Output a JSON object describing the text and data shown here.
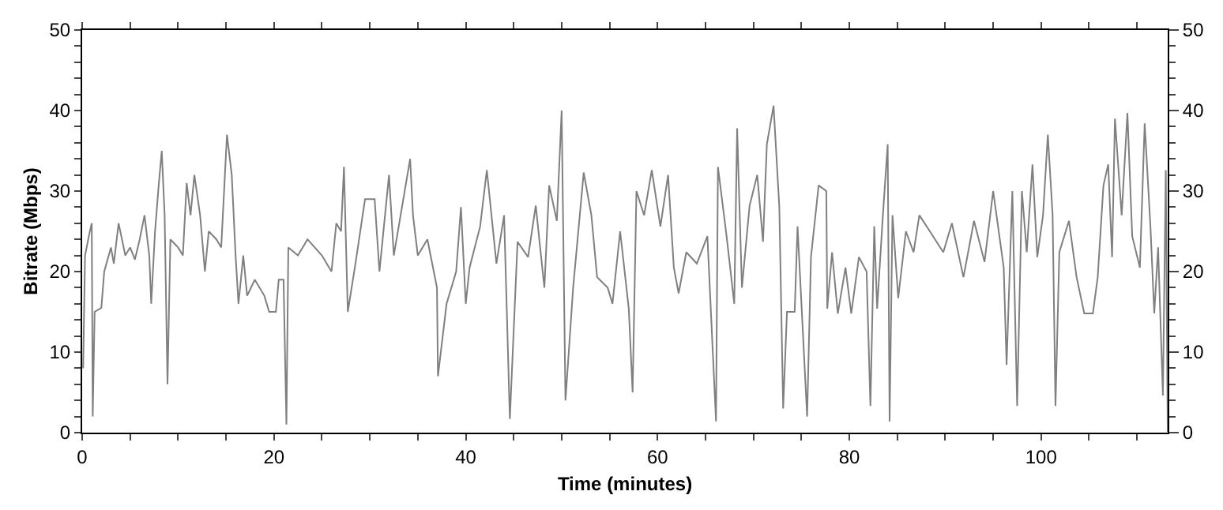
{
  "chart_data": {
    "type": "line",
    "xlabel": "Time (minutes)",
    "ylabel": "Bitrate (Mbps)",
    "xlim": [
      0,
      113.2
    ],
    "ylim": [
      0,
      50
    ],
    "y2lim": [
      0,
      50
    ],
    "xticks": [
      0,
      {
        "value": 5,
        "label": null
      },
      {
        "value": 10,
        "label": null
      },
      {
        "value": 15,
        "label": null
      },
      20,
      {
        "value": 25,
        "label": null
      },
      {
        "value": 30,
        "label": null
      },
      {
        "value": 35,
        "label": null
      },
      40,
      {
        "value": 45,
        "label": null
      },
      {
        "value": 50,
        "label": null
      },
      {
        "value": 55,
        "label": null
      },
      60,
      {
        "value": 65,
        "label": null
      },
      {
        "value": 70,
        "label": null
      },
      {
        "value": 75,
        "label": null
      },
      80,
      {
        "value": 85,
        "label": null
      },
      {
        "value": 90,
        "label": null
      },
      {
        "value": 95,
        "label": null
      },
      100,
      {
        "value": 105,
        "label": null
      },
      {
        "value": 110,
        "label": null
      }
    ],
    "yticks": [
      0,
      {
        "value": 2,
        "label": null
      },
      {
        "value": 4,
        "label": null
      },
      {
        "value": 6,
        "label": null
      },
      {
        "value": 8,
        "label": null
      },
      10,
      {
        "value": 12,
        "label": null
      },
      {
        "value": 14,
        "label": null
      },
      {
        "value": 16,
        "label": null
      },
      {
        "value": 18,
        "label": null
      },
      20,
      {
        "value": 22,
        "label": null
      },
      {
        "value": 24,
        "label": null
      },
      {
        "value": 26,
        "label": null
      },
      {
        "value": 28,
        "label": null
      },
      30,
      {
        "value": 32,
        "label": null
      },
      {
        "value": 34,
        "label": null
      },
      {
        "value": 36,
        "label": null
      },
      {
        "value": 38,
        "label": null
      },
      40,
      {
        "value": 42,
        "label": null
      },
      {
        "value": 44,
        "label": null
      },
      {
        "value": 46,
        "label": null
      },
      {
        "value": 48,
        "label": null
      },
      50
    ],
    "y2ticks": [
      0,
      10,
      20,
      30,
      40,
      50
    ],
    "marker": "none",
    "line_style": "solid",
    "series": [
      {
        "color": "#808080",
        "x": [
          0.1,
          0.3,
          0.8,
          1.0,
          1.1,
          1.3,
          2.0,
          2.3,
          3.0,
          3.3,
          3.8,
          4.5,
          5.0,
          5.5,
          6.0,
          6.5,
          7.0,
          7.2,
          7.6,
          8.0,
          8.3,
          8.6,
          8.9,
          9.2,
          10.0,
          10.5,
          10.9,
          11.3,
          11.7,
          12.3,
          12.8,
          13.2,
          14.0,
          14.5,
          15.1,
          15.6,
          16.0,
          16.3,
          16.8,
          17.2,
          18.0,
          19.0,
          19.5,
          20.2,
          20.5,
          21.0,
          21.3,
          21.5,
          22.5,
          23.5,
          25.0,
          26.0,
          26.5,
          27.0,
          27.3,
          27.5,
          27.7,
          28.5,
          29.5,
          30.5,
          31.0,
          32.0,
          32.5,
          34.2,
          34.5,
          35.0,
          36.0,
          37.0,
          37.1,
          38.0,
          39.0,
          39.5,
          40.0,
          40.4,
          41.5,
          42.2,
          43.2,
          44.0,
          44.6,
          45.4,
          46.5,
          47.3,
          48.2,
          48.7,
          49.5,
          50.0,
          50.4,
          51.2,
          52.3,
          53.1,
          53.7,
          54.8,
          55.3,
          56.1,
          57.0,
          57.4,
          57.8,
          58.6,
          59.4,
          60.3,
          61.1,
          61.7,
          62.2,
          63.0,
          64.1,
          65.2,
          66.1,
          66.3,
          67.2,
          68.0,
          68.3,
          68.8,
          69.6,
          70.4,
          71.0,
          71.4,
          72.1,
          72.7,
          73.1,
          73.5,
          74.3,
          74.6,
          75.6,
          76.0,
          76.8,
          77.6,
          77.7,
          78.2,
          78.8,
          79.6,
          80.2,
          81.0,
          81.8,
          82.2,
          82.6,
          82.9,
          83.5,
          84.0,
          84.2,
          84.5,
          85.1,
          85.9,
          86.7,
          87.3,
          88.4,
          89.8,
          90.7,
          91.9,
          93.0,
          94.1,
          95.0,
          96.1,
          96.4,
          97.0,
          97.5,
          98.0,
          98.5,
          99.1,
          99.6,
          100.2,
          100.7,
          101.2,
          101.5,
          101.9,
          102.9,
          103.7,
          104.5,
          105.4,
          105.9,
          106.5,
          107.0,
          107.4,
          107.7,
          108.4,
          109.0,
          109.5,
          110.3,
          110.8,
          111.4,
          111.8,
          112.2,
          112.7,
          113.0,
          113.2
        ],
        "values": [
          8,
          22,
          25,
          26,
          2,
          15,
          15.5,
          20,
          23,
          21,
          26,
          22,
          23,
          21.5,
          24,
          27,
          22,
          16,
          25,
          31,
          35,
          27,
          6,
          24,
          23,
          22,
          31,
          27,
          32,
          27,
          20,
          25,
          24,
          23,
          37,
          32,
          22,
          16,
          22,
          17,
          19,
          17,
          15,
          15,
          19,
          19,
          1,
          23,
          22,
          24,
          22,
          20,
          26,
          25,
          33,
          24,
          15,
          21,
          29,
          29,
          20,
          32,
          22,
          34,
          27,
          22,
          24,
          18,
          7,
          16,
          20,
          28,
          16,
          20.5,
          25.6,
          32.6,
          21,
          27,
          1.7,
          23.7,
          21.8,
          28.2,
          18,
          30.7,
          26.3,
          40,
          4,
          18,
          32.3,
          27,
          19.3,
          18,
          16,
          25,
          15.4,
          5,
          30,
          27,
          32.6,
          25.6,
          32,
          20.5,
          17.3,
          22.4,
          21,
          24.4,
          1.4,
          33,
          24.4,
          16,
          37.8,
          18,
          28.2,
          32,
          23.7,
          35.8,
          40.6,
          28,
          3,
          15,
          15,
          25.6,
          2,
          21.8,
          30.7,
          30,
          15.4,
          22.4,
          14.8,
          20.5,
          14.8,
          21.8,
          20,
          3.3,
          25.6,
          15.4,
          27,
          35.8,
          1.4,
          27,
          16.7,
          25,
          22.4,
          27,
          25,
          22.4,
          26,
          19.3,
          26.3,
          21.2,
          30,
          20.5,
          8.4,
          30,
          3.3,
          30,
          22.4,
          33.3,
          21.8,
          27,
          37,
          27,
          3.3,
          22.4,
          26.3,
          19.3,
          14.8,
          14.8,
          19.3,
          30.7,
          33.3,
          21.8,
          39,
          27,
          39.7,
          24.4,
          20.5,
          38.4,
          25.6,
          14.8,
          23,
          4.6,
          32.6,
          0.1
        ]
      }
    ]
  }
}
